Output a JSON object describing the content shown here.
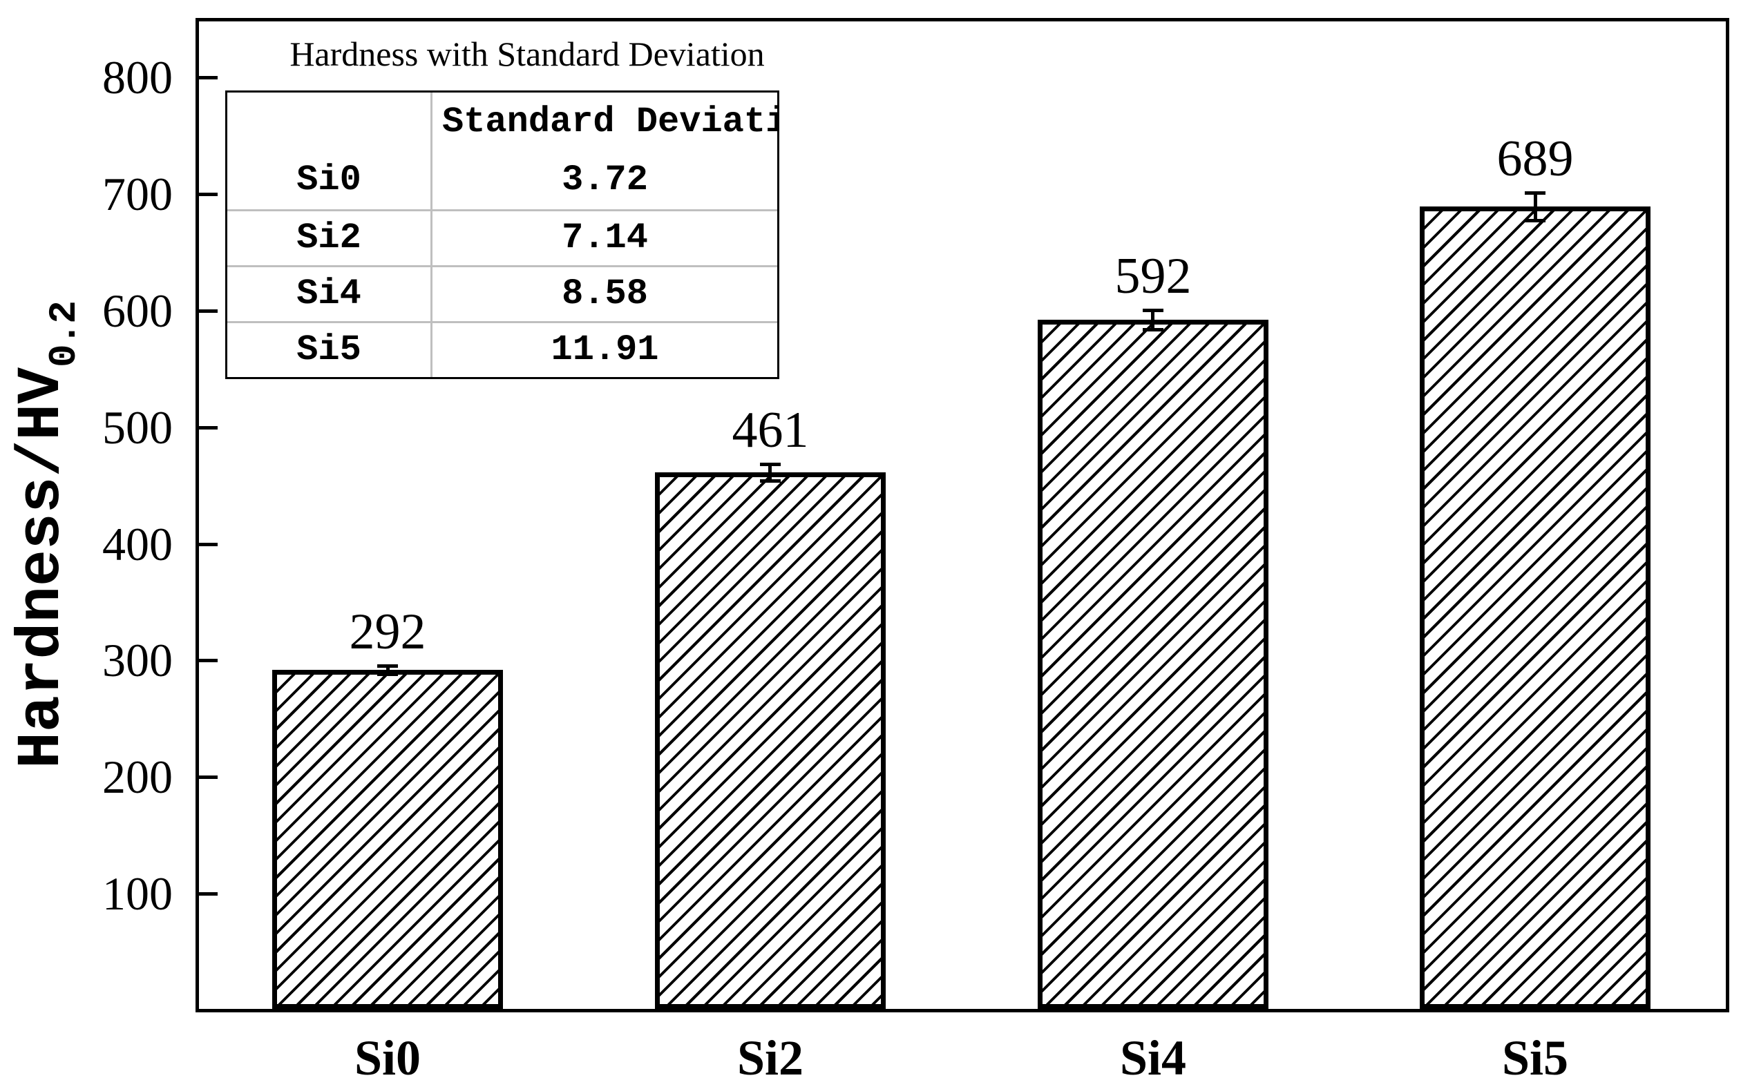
{
  "figure": {
    "background_color": "#ffffff",
    "ink_color": "#000000",
    "table_grid_color": "#bfbfbf"
  },
  "y_axis": {
    "label": {
      "text": "Hardness/HV",
      "subscript": "0.2"
    },
    "tick_labels": [
      "100",
      "200",
      "300",
      "400",
      "500",
      "600",
      "700",
      "800"
    ]
  },
  "inset": {
    "title": "Hardness with Standard Deviation",
    "table": {
      "header": {
        "col1": "",
        "col2": "Standard Deviati"
      },
      "rows": [
        {
          "sample": "Si0",
          "sd": "3.72"
        },
        {
          "sample": "Si2",
          "sd": "7.14"
        },
        {
          "sample": "Si4",
          "sd": "8.58"
        },
        {
          "sample": "Si5",
          "sd": "11.91"
        }
      ]
    }
  },
  "chart_data": {
    "type": "bar",
    "categories": [
      "Si0",
      "Si2",
      "Si4",
      "Si5"
    ],
    "values": [
      292,
      461,
      592,
      689
    ],
    "errors": [
      3.72,
      7.14,
      8.58,
      11.91
    ],
    "bar_labels": [
      "292",
      "461",
      "592",
      "689"
    ],
    "title": "",
    "xlabel": "",
    "ylabel": "Hardness/HV0.2",
    "ylim": [
      0,
      850
    ],
    "yticks": [
      100,
      200,
      300,
      400,
      500,
      600,
      700,
      800
    ],
    "grid": false,
    "legend": null,
    "bar_style": {
      "fill": "#ffffff",
      "hatch": "///",
      "edge": "#000000"
    }
  }
}
